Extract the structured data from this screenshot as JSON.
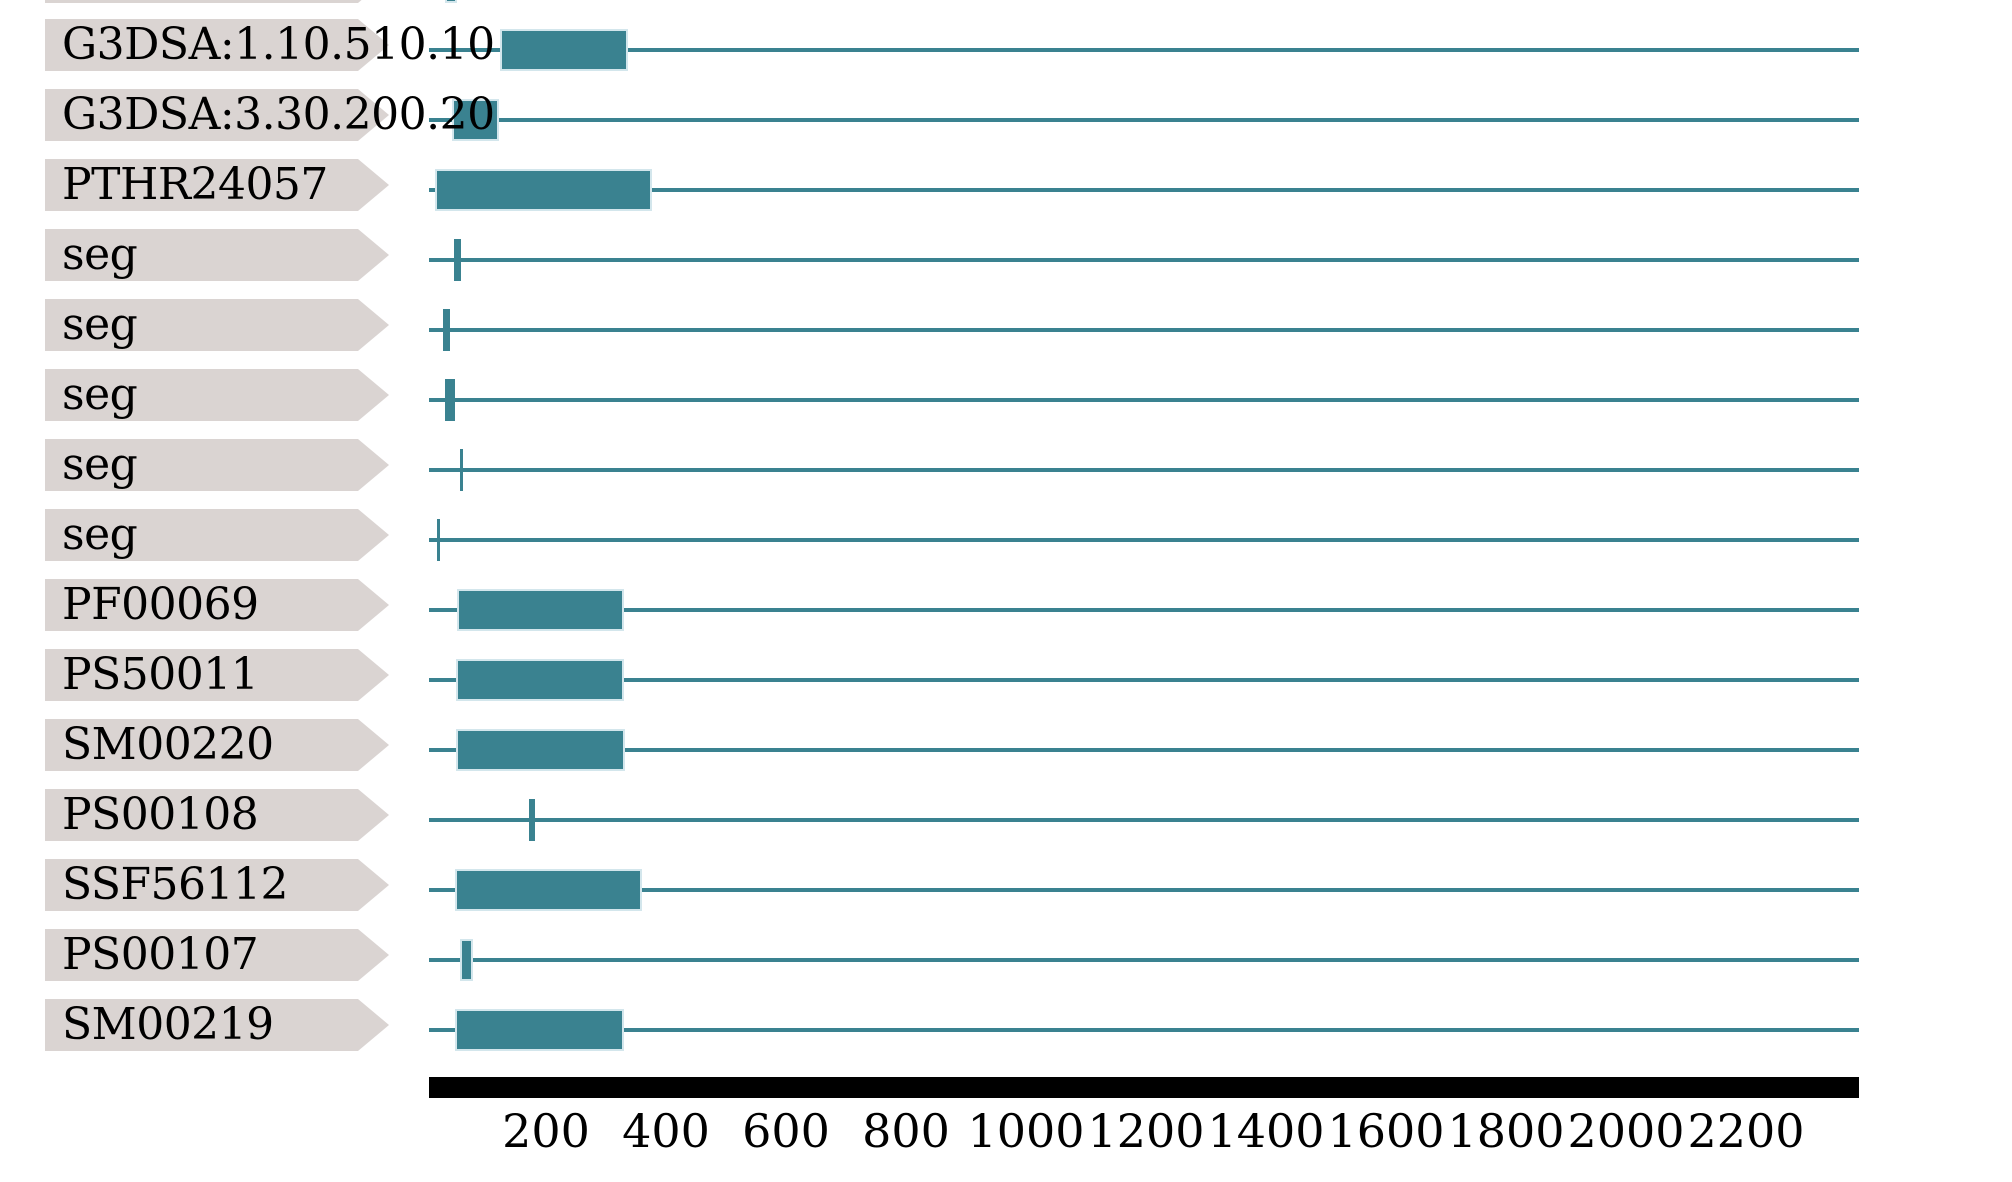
{
  "colors": {
    "background": "#ffffff",
    "feature": "#3a8290",
    "feature_border": "#d3e6ec",
    "label_bg": "#dad4d2",
    "axis_bar": "#000000",
    "text": "#000000"
  },
  "chart_data": {
    "type": "bar",
    "subtype": "protein-domain-track-plot",
    "title": "",
    "xlabel": "",
    "ylabel": "",
    "axis": {
      "ticks": [
        200,
        400,
        600,
        800,
        1000,
        1200,
        1400,
        1600,
        1800,
        2000,
        2200
      ],
      "range": [
        0,
        2390
      ],
      "grid": false,
      "legend": "none"
    },
    "rows": [
      {
        "label": "",
        "partial": true,
        "features": [
          {
            "kind": "box",
            "start": 31,
            "end": 51
          }
        ]
      },
      {
        "label": "G3DSA:1.10.510.10",
        "partial": false,
        "features": [
          {
            "kind": "box",
            "start": 124,
            "end": 336
          }
        ]
      },
      {
        "label": "G3DSA:3.30.200.20",
        "partial": false,
        "features": [
          {
            "kind": "box",
            "start": 43,
            "end": 122
          }
        ]
      },
      {
        "label": "PTHR24057",
        "partial": false,
        "features": [
          {
            "kind": "box",
            "start": 15,
            "end": 377
          }
        ]
      },
      {
        "label": "seg",
        "partial": false,
        "features": [
          {
            "kind": "tick",
            "start": 47,
            "end": 59
          }
        ]
      },
      {
        "label": "seg",
        "partial": false,
        "features": [
          {
            "kind": "tick",
            "start": 28,
            "end": 40
          }
        ]
      },
      {
        "label": "seg",
        "partial": false,
        "features": [
          {
            "kind": "tick",
            "start": 31,
            "end": 48
          }
        ]
      },
      {
        "label": "seg",
        "partial": false,
        "features": [
          {
            "kind": "tick",
            "start": 57,
            "end": 62
          }
        ]
      },
      {
        "label": "seg",
        "partial": false,
        "features": [
          {
            "kind": "tick",
            "start": 18,
            "end": 23
          }
        ]
      },
      {
        "label": "PF00069",
        "partial": false,
        "features": [
          {
            "kind": "box",
            "start": 52,
            "end": 330
          }
        ]
      },
      {
        "label": "PS50011",
        "partial": false,
        "features": [
          {
            "kind": "box",
            "start": 50,
            "end": 330
          }
        ]
      },
      {
        "label": "SM00220",
        "partial": false,
        "features": [
          {
            "kind": "box",
            "start": 50,
            "end": 331
          }
        ]
      },
      {
        "label": "PS00108",
        "partial": false,
        "features": [
          {
            "kind": "tick",
            "start": 171,
            "end": 181
          }
        ]
      },
      {
        "label": "SSF56112",
        "partial": false,
        "features": [
          {
            "kind": "box",
            "start": 48,
            "end": 360
          }
        ]
      },
      {
        "label": "PS00107",
        "partial": false,
        "features": [
          {
            "kind": "box",
            "start": 56,
            "end": 79
          }
        ]
      },
      {
        "label": "SM00219",
        "partial": false,
        "features": [
          {
            "kind": "box",
            "start": 48,
            "end": 330
          }
        ]
      }
    ]
  }
}
